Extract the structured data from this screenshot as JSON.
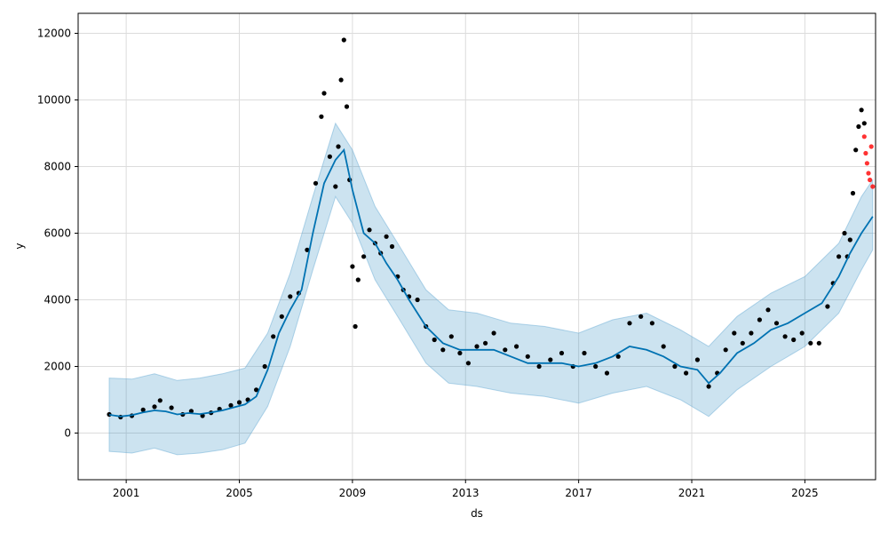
{
  "chart_data": {
    "type": "line",
    "title": "",
    "xlabel": "ds",
    "ylabel": "y",
    "xlim": [
      1999.3,
      2027.5
    ],
    "ylim": [
      -1400,
      12600
    ],
    "x_ticks": [
      2001,
      2005,
      2009,
      2013,
      2017,
      2021,
      2025
    ],
    "y_ticks": [
      0,
      2000,
      4000,
      6000,
      8000,
      10000,
      12000
    ],
    "grid": true,
    "colors": {
      "forecast": "#0072B2",
      "interval_fill": "#0072B2",
      "actual": "#000000",
      "new_actual": "#FF0000"
    },
    "series": [
      {
        "role": "actual",
        "points": [
          [
            2000.4,
            560
          ],
          [
            2000.8,
            480
          ],
          [
            2001.2,
            520
          ],
          [
            2001.6,
            700
          ],
          [
            2002.0,
            790
          ],
          [
            2002.2,
            980
          ],
          [
            2002.6,
            760
          ],
          [
            2003.0,
            560
          ],
          [
            2003.3,
            660
          ],
          [
            2003.7,
            520
          ],
          [
            2004.0,
            610
          ],
          [
            2004.3,
            720
          ],
          [
            2004.7,
            830
          ],
          [
            2005.0,
            920
          ],
          [
            2005.3,
            1000
          ],
          [
            2005.6,
            1300
          ],
          [
            2005.9,
            2000
          ],
          [
            2006.2,
            2900
          ],
          [
            2006.5,
            3500
          ],
          [
            2006.8,
            4100
          ],
          [
            2007.1,
            4200
          ],
          [
            2007.4,
            5500
          ],
          [
            2007.7,
            7500
          ],
          [
            2007.9,
            9500
          ],
          [
            2008.0,
            10200
          ],
          [
            2008.2,
            8300
          ],
          [
            2008.4,
            7400
          ],
          [
            2008.5,
            8600
          ],
          [
            2008.6,
            10600
          ],
          [
            2008.7,
            11800
          ],
          [
            2008.8,
            9800
          ],
          [
            2008.9,
            7600
          ],
          [
            2009.0,
            5000
          ],
          [
            2009.1,
            3200
          ],
          [
            2009.2,
            4600
          ],
          [
            2009.4,
            5300
          ],
          [
            2009.6,
            6100
          ],
          [
            2009.8,
            5700
          ],
          [
            2010.0,
            5400
          ],
          [
            2010.2,
            5900
          ],
          [
            2010.4,
            5600
          ],
          [
            2010.6,
            4700
          ],
          [
            2010.8,
            4300
          ],
          [
            2011.0,
            4100
          ],
          [
            2011.3,
            4000
          ],
          [
            2011.6,
            3200
          ],
          [
            2011.9,
            2800
          ],
          [
            2012.2,
            2500
          ],
          [
            2012.5,
            2900
          ],
          [
            2012.8,
            2400
          ],
          [
            2013.1,
            2100
          ],
          [
            2013.4,
            2600
          ],
          [
            2013.7,
            2700
          ],
          [
            2014.0,
            3000
          ],
          [
            2014.4,
            2500
          ],
          [
            2014.8,
            2600
          ],
          [
            2015.2,
            2300
          ],
          [
            2015.6,
            2000
          ],
          [
            2016.0,
            2200
          ],
          [
            2016.4,
            2400
          ],
          [
            2016.8,
            2000
          ],
          [
            2017.2,
            2400
          ],
          [
            2017.6,
            2000
          ],
          [
            2018.0,
            1800
          ],
          [
            2018.4,
            2300
          ],
          [
            2018.8,
            3300
          ],
          [
            2019.2,
            3500
          ],
          [
            2019.6,
            3300
          ],
          [
            2020.0,
            2600
          ],
          [
            2020.4,
            2000
          ],
          [
            2020.8,
            1800
          ],
          [
            2021.2,
            2200
          ],
          [
            2021.6,
            1400
          ],
          [
            2021.9,
            1800
          ],
          [
            2022.2,
            2500
          ],
          [
            2022.5,
            3000
          ],
          [
            2022.8,
            2700
          ],
          [
            2023.1,
            3000
          ],
          [
            2023.4,
            3400
          ],
          [
            2023.7,
            3700
          ],
          [
            2024.0,
            3300
          ],
          [
            2024.3,
            2900
          ],
          [
            2024.6,
            2800
          ],
          [
            2024.9,
            3000
          ],
          [
            2025.2,
            2700
          ],
          [
            2025.5,
            2700
          ],
          [
            2025.8,
            3800
          ],
          [
            2026.0,
            4500
          ],
          [
            2026.2,
            5300
          ],
          [
            2026.4,
            6000
          ],
          [
            2026.5,
            5300
          ],
          [
            2026.6,
            5800
          ],
          [
            2026.7,
            7200
          ],
          [
            2026.8,
            8500
          ],
          [
            2026.9,
            9200
          ],
          [
            2027.0,
            9700
          ],
          [
            2027.1,
            9300
          ]
        ]
      },
      {
        "role": "new_actual",
        "points": [
          [
            2027.1,
            8900
          ],
          [
            2027.15,
            8400
          ],
          [
            2027.2,
            8100
          ],
          [
            2027.25,
            7800
          ],
          [
            2027.3,
            7600
          ],
          [
            2027.35,
            8600
          ],
          [
            2027.4,
            7400
          ]
        ]
      },
      {
        "role": "forecast",
        "points": [
          [
            2000.4,
            550
          ],
          [
            2000.8,
            500
          ],
          [
            2001.2,
            540
          ],
          [
            2001.6,
            620
          ],
          [
            2002.0,
            680
          ],
          [
            2002.4,
            650
          ],
          [
            2002.8,
            560
          ],
          [
            2003.2,
            600
          ],
          [
            2003.6,
            570
          ],
          [
            2004.0,
            620
          ],
          [
            2004.4,
            680
          ],
          [
            2004.8,
            770
          ],
          [
            2005.2,
            860
          ],
          [
            2005.6,
            1100
          ],
          [
            2006.0,
            1900
          ],
          [
            2006.4,
            3000
          ],
          [
            2006.8,
            3700
          ],
          [
            2007.2,
            4300
          ],
          [
            2007.6,
            6000
          ],
          [
            2008.0,
            7500
          ],
          [
            2008.4,
            8200
          ],
          [
            2008.7,
            8500
          ],
          [
            2009.0,
            7300
          ],
          [
            2009.4,
            6000
          ],
          [
            2009.8,
            5700
          ],
          [
            2010.2,
            5100
          ],
          [
            2010.6,
            4600
          ],
          [
            2011.0,
            4000
          ],
          [
            2011.6,
            3200
          ],
          [
            2012.2,
            2700
          ],
          [
            2012.8,
            2500
          ],
          [
            2013.4,
            2500
          ],
          [
            2014.0,
            2500
          ],
          [
            2014.6,
            2300
          ],
          [
            2015.2,
            2100
          ],
          [
            2015.8,
            2100
          ],
          [
            2016.4,
            2100
          ],
          [
            2017.0,
            2000
          ],
          [
            2017.6,
            2100
          ],
          [
            2018.2,
            2300
          ],
          [
            2018.8,
            2600
          ],
          [
            2019.4,
            2500
          ],
          [
            2020.0,
            2300
          ],
          [
            2020.6,
            2000
          ],
          [
            2021.2,
            1900
          ],
          [
            2021.6,
            1500
          ],
          [
            2022.0,
            1800
          ],
          [
            2022.6,
            2400
          ],
          [
            2023.2,
            2700
          ],
          [
            2023.8,
            3100
          ],
          [
            2024.4,
            3300
          ],
          [
            2025.0,
            3600
          ],
          [
            2025.6,
            3900
          ],
          [
            2026.2,
            4700
          ],
          [
            2026.6,
            5400
          ],
          [
            2027.0,
            6000
          ],
          [
            2027.4,
            6500
          ]
        ]
      },
      {
        "role": "interval_upper",
        "points": [
          [
            2000.4,
            1650
          ],
          [
            2001.2,
            1620
          ],
          [
            2002.0,
            1780
          ],
          [
            2002.8,
            1580
          ],
          [
            2003.6,
            1650
          ],
          [
            2004.4,
            1780
          ],
          [
            2005.2,
            1950
          ],
          [
            2006.0,
            3000
          ],
          [
            2006.8,
            4800
          ],
          [
            2007.6,
            7100
          ],
          [
            2008.4,
            9300
          ],
          [
            2009.0,
            8500
          ],
          [
            2009.8,
            6800
          ],
          [
            2010.6,
            5700
          ],
          [
            2011.6,
            4300
          ],
          [
            2012.4,
            3700
          ],
          [
            2013.4,
            3600
          ],
          [
            2014.6,
            3300
          ],
          [
            2015.8,
            3200
          ],
          [
            2017.0,
            3000
          ],
          [
            2018.2,
            3400
          ],
          [
            2019.4,
            3600
          ],
          [
            2020.6,
            3100
          ],
          [
            2021.6,
            2600
          ],
          [
            2022.6,
            3500
          ],
          [
            2023.8,
            4200
          ],
          [
            2025.0,
            4700
          ],
          [
            2026.2,
            5700
          ],
          [
            2027.0,
            7100
          ],
          [
            2027.4,
            7600
          ]
        ]
      },
      {
        "role": "interval_lower",
        "points": [
          [
            2000.4,
            -550
          ],
          [
            2001.2,
            -600
          ],
          [
            2002.0,
            -450
          ],
          [
            2002.8,
            -650
          ],
          [
            2003.6,
            -600
          ],
          [
            2004.4,
            -500
          ],
          [
            2005.2,
            -300
          ],
          [
            2006.0,
            800
          ],
          [
            2006.8,
            2600
          ],
          [
            2007.6,
            4900
          ],
          [
            2008.4,
            7100
          ],
          [
            2009.0,
            6300
          ],
          [
            2009.8,
            4600
          ],
          [
            2010.6,
            3500
          ],
          [
            2011.6,
            2100
          ],
          [
            2012.4,
            1500
          ],
          [
            2013.4,
            1400
          ],
          [
            2014.6,
            1200
          ],
          [
            2015.8,
            1100
          ],
          [
            2017.0,
            900
          ],
          [
            2018.2,
            1200
          ],
          [
            2019.4,
            1400
          ],
          [
            2020.6,
            1000
          ],
          [
            2021.6,
            500
          ],
          [
            2022.6,
            1300
          ],
          [
            2023.8,
            2000
          ],
          [
            2025.0,
            2600
          ],
          [
            2026.2,
            3600
          ],
          [
            2027.0,
            4900
          ],
          [
            2027.4,
            5500
          ]
        ]
      }
    ]
  }
}
